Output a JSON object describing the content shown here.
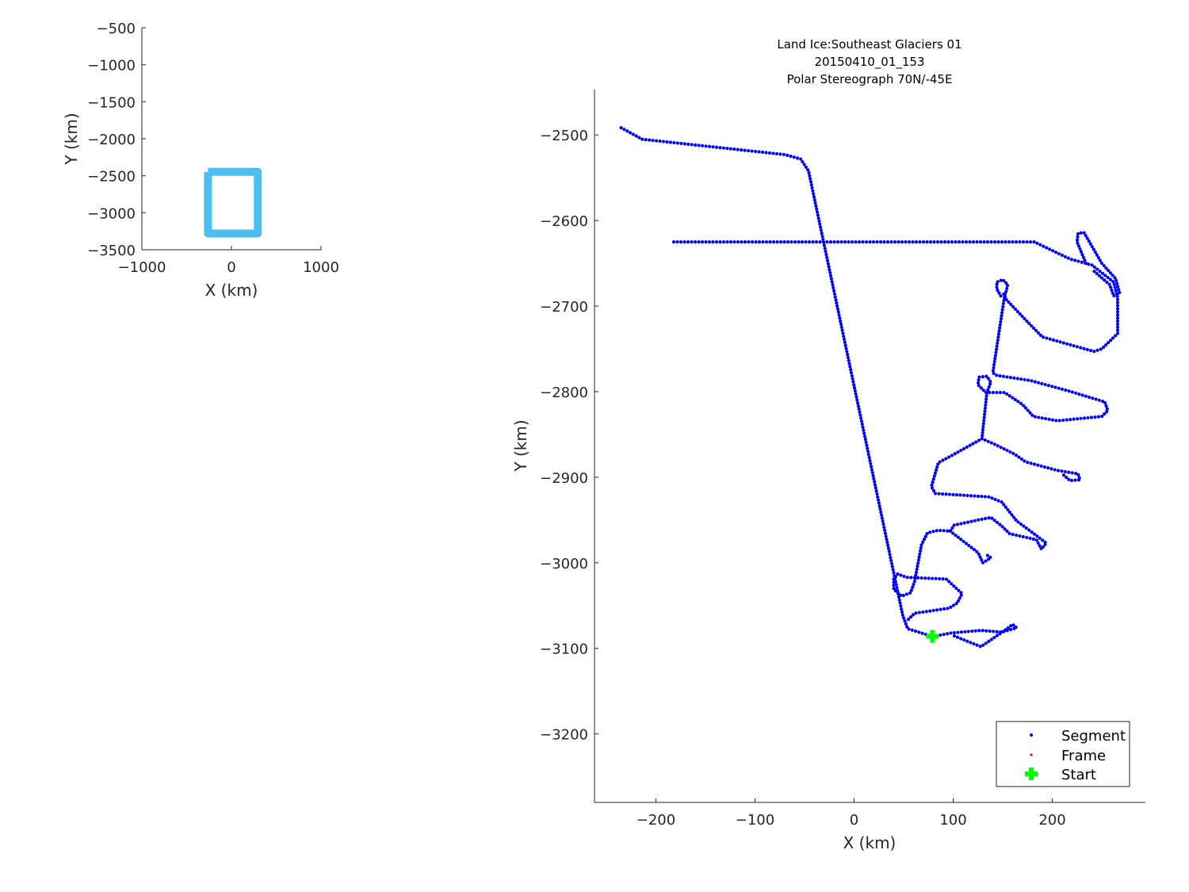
{
  "colors": {
    "segment": "#0000ff",
    "frame": "#ff0000",
    "start": "#00ff00",
    "overview_box": "#4dbeee",
    "axis": "#262626"
  },
  "chart_data": [
    {
      "type": "line",
      "xlabel": "X (km)",
      "ylabel": "Y (km)",
      "xlim": [
        -1000,
        1000
      ],
      "ylim": [
        -3500,
        -500
      ],
      "xticks": [
        "-1000",
        "0",
        "1000"
      ],
      "yticks": [
        "-500",
        "-1000",
        "-1500",
        "-2000",
        "-2500",
        "-3000",
        "-3500"
      ],
      "series": [
        {
          "x": [
            -262,
            294,
            294,
            -262,
            -262
          ],
          "y": [
            -2447,
            -2447,
            -3280,
            -3280,
            -2447
          ]
        }
      ]
    },
    {
      "type": "scatter",
      "title": [
        "Land Ice:Southeast Glaciers 01",
        "20150410_01_153",
        "Polar Stereograph 70N/-45E"
      ],
      "xlabel": "X (km)",
      "ylabel": "Y (km)",
      "xlim": [
        -262,
        294
      ],
      "ylim": [
        -3280,
        -2447
      ],
      "xticks": [
        "-200",
        "-100",
        "0",
        "100",
        "200"
      ],
      "yticks": [
        "-2500",
        "-2600",
        "-2700",
        "-2800",
        "-2900",
        "-3000",
        "-3100",
        "-3200"
      ],
      "legend": {
        "position": "bottom-right",
        "entries": [
          "Segment",
          "Frame",
          "Start"
        ]
      },
      "segment_tracks": [
        [
          [
            79,
            -3086
          ],
          [
            54,
            -3077
          ],
          [
            49,
            -3061
          ],
          [
            -46,
            -2542
          ],
          [
            -54,
            -2528
          ],
          [
            -70,
            -2523
          ],
          [
            -214,
            -2505
          ],
          [
            -236,
            -2491
          ]
        ],
        [
          [
            -182,
            -2625
          ],
          [
            182,
            -2625
          ],
          [
            198,
            -2634
          ],
          [
            218,
            -2645
          ],
          [
            240,
            -2652
          ],
          [
            262,
            -2672
          ],
          [
            266,
            -2690
          ],
          [
            266,
            -2732
          ],
          [
            250,
            -2750
          ],
          [
            242,
            -2753
          ],
          [
            190,
            -2736
          ],
          [
            178,
            -2722
          ],
          [
            154,
            -2693
          ],
          [
            150,
            -2683
          ]
        ],
        [
          [
            234,
            -2650
          ],
          [
            225,
            -2625
          ],
          [
            226,
            -2615
          ],
          [
            232,
            -2614
          ],
          [
            236,
            -2622
          ],
          [
            250,
            -2650
          ],
          [
            264,
            -2668
          ],
          [
            268,
            -2685
          ],
          [
            262,
            -2688
          ],
          [
            258,
            -2675
          ],
          [
            240,
            -2657
          ]
        ],
        [
          [
            148,
            -2688
          ],
          [
            144,
            -2680
          ],
          [
            144,
            -2672
          ],
          [
            150,
            -2669
          ],
          [
            155,
            -2675
          ],
          [
            153,
            -2685
          ],
          [
            152,
            -2687
          ],
          [
            140,
            -2778
          ],
          [
            144,
            -2781
          ],
          [
            178,
            -2787
          ],
          [
            216,
            -2799
          ],
          [
            253,
            -2812
          ],
          [
            256,
            -2822
          ],
          [
            250,
            -2829
          ],
          [
            205,
            -2834
          ],
          [
            181,
            -2829
          ],
          [
            170,
            -2815
          ],
          [
            152,
            -2801
          ],
          [
            133,
            -2801
          ],
          [
            125,
            -2792
          ],
          [
            126,
            -2783
          ],
          [
            134,
            -2782
          ],
          [
            138,
            -2789
          ],
          [
            134,
            -2801
          ],
          [
            129,
            -2855
          ]
        ],
        [
          [
            129,
            -2855
          ],
          [
            141,
            -2861
          ],
          [
            162,
            -2873
          ],
          [
            173,
            -2882
          ],
          [
            205,
            -2892
          ],
          [
            226,
            -2896
          ],
          [
            228,
            -2903
          ],
          [
            218,
            -2904
          ],
          [
            210,
            -2896
          ]
        ],
        [
          [
            129,
            -2855
          ],
          [
            98,
            -2875
          ],
          [
            85,
            -2883
          ],
          [
            78,
            -2911
          ],
          [
            82,
            -2919
          ],
          [
            136,
            -2923
          ],
          [
            149,
            -2929
          ],
          [
            164,
            -2951
          ],
          [
            178,
            -2963
          ],
          [
            194,
            -2977
          ],
          [
            189,
            -2984
          ],
          [
            184,
            -2973
          ],
          [
            157,
            -2966
          ],
          [
            149,
            -2957
          ],
          [
            138,
            -2947
          ],
          [
            125,
            -2950
          ],
          [
            101,
            -2956
          ],
          [
            97,
            -2963
          ],
          [
            85,
            -2962
          ],
          [
            74,
            -2965
          ],
          [
            68,
            -2979
          ],
          [
            61,
            -3022
          ],
          [
            57,
            -3035
          ],
          [
            48,
            -3039
          ],
          [
            40,
            -3031
          ],
          [
            40,
            -3019
          ],
          [
            44,
            -3013
          ],
          [
            53,
            -3017
          ],
          [
            93,
            -3019
          ],
          [
            109,
            -3036
          ],
          [
            104,
            -3047
          ],
          [
            96,
            -3053
          ],
          [
            61,
            -3059
          ],
          [
            54,
            -3067
          ]
        ],
        [
          [
            97,
            -2963
          ],
          [
            125,
            -2988
          ],
          [
            130,
            -3000
          ],
          [
            138,
            -2994
          ],
          [
            133,
            -2990
          ]
        ],
        [
          [
            80,
            -3086
          ],
          [
            98,
            -3082
          ],
          [
            128,
            -3079
          ],
          [
            149,
            -3081
          ],
          [
            164,
            -3076
          ],
          [
            160,
            -3072
          ],
          [
            152,
            -3079
          ],
          [
            128,
            -3098
          ],
          [
            117,
            -3093
          ],
          [
            98,
            -3084
          ]
        ]
      ],
      "frame_points": [
        [
          80,
          -3086
        ]
      ],
      "start_point": [
        79,
        -3086
      ]
    }
  ]
}
